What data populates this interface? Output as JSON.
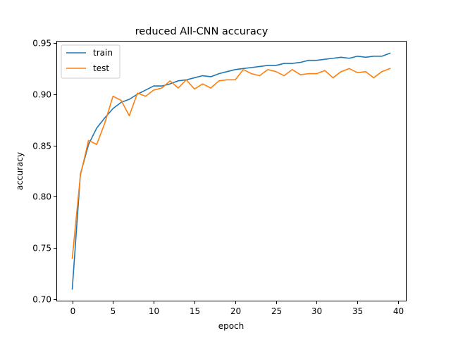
{
  "chart_data": {
    "type": "line",
    "title": "reduced All-CNN accuracy",
    "xlabel": "epoch",
    "ylabel": "accuracy",
    "xlim": [
      -1.95,
      40.95
    ],
    "ylim": [
      0.698,
      0.952
    ],
    "xticks": [
      0,
      5,
      10,
      15,
      20,
      25,
      30,
      35,
      40
    ],
    "yticks": [
      0.7,
      0.75,
      0.8,
      0.85,
      0.9,
      0.95
    ],
    "xtick_labels": [
      "0",
      "5",
      "10",
      "15",
      "20",
      "25",
      "30",
      "35",
      "40"
    ],
    "ytick_labels": [
      "0.70",
      "0.75",
      "0.80",
      "0.85",
      "0.90",
      "0.95"
    ],
    "grid": false,
    "legend_position": "top-left",
    "x": [
      0,
      1,
      2,
      3,
      4,
      5,
      6,
      7,
      8,
      9,
      10,
      11,
      12,
      13,
      14,
      15,
      16,
      17,
      18,
      19,
      20,
      21,
      22,
      23,
      24,
      25,
      26,
      27,
      28,
      29,
      30,
      31,
      32,
      33,
      34,
      35,
      36,
      37,
      38,
      39
    ],
    "series": [
      {
        "name": "train",
        "color": "#1f77b4",
        "values": [
          0.71,
          0.822,
          0.851,
          0.867,
          0.877,
          0.886,
          0.892,
          0.895,
          0.9,
          0.904,
          0.908,
          0.908,
          0.91,
          0.913,
          0.914,
          0.916,
          0.918,
          0.917,
          0.92,
          0.922,
          0.924,
          0.925,
          0.926,
          0.927,
          0.928,
          0.928,
          0.93,
          0.93,
          0.931,
          0.933,
          0.933,
          0.934,
          0.935,
          0.936,
          0.935,
          0.937,
          0.936,
          0.937,
          0.937,
          0.94
        ]
      },
      {
        "name": "test",
        "color": "#ff7f0e",
        "values": [
          0.74,
          0.821,
          0.855,
          0.851,
          0.872,
          0.898,
          0.894,
          0.879,
          0.901,
          0.898,
          0.904,
          0.906,
          0.913,
          0.906,
          0.914,
          0.905,
          0.91,
          0.906,
          0.913,
          0.914,
          0.914,
          0.924,
          0.92,
          0.918,
          0.924,
          0.922,
          0.918,
          0.924,
          0.919,
          0.92,
          0.92,
          0.923,
          0.916,
          0.922,
          0.925,
          0.921,
          0.922,
          0.916,
          0.922,
          0.925
        ]
      }
    ]
  }
}
